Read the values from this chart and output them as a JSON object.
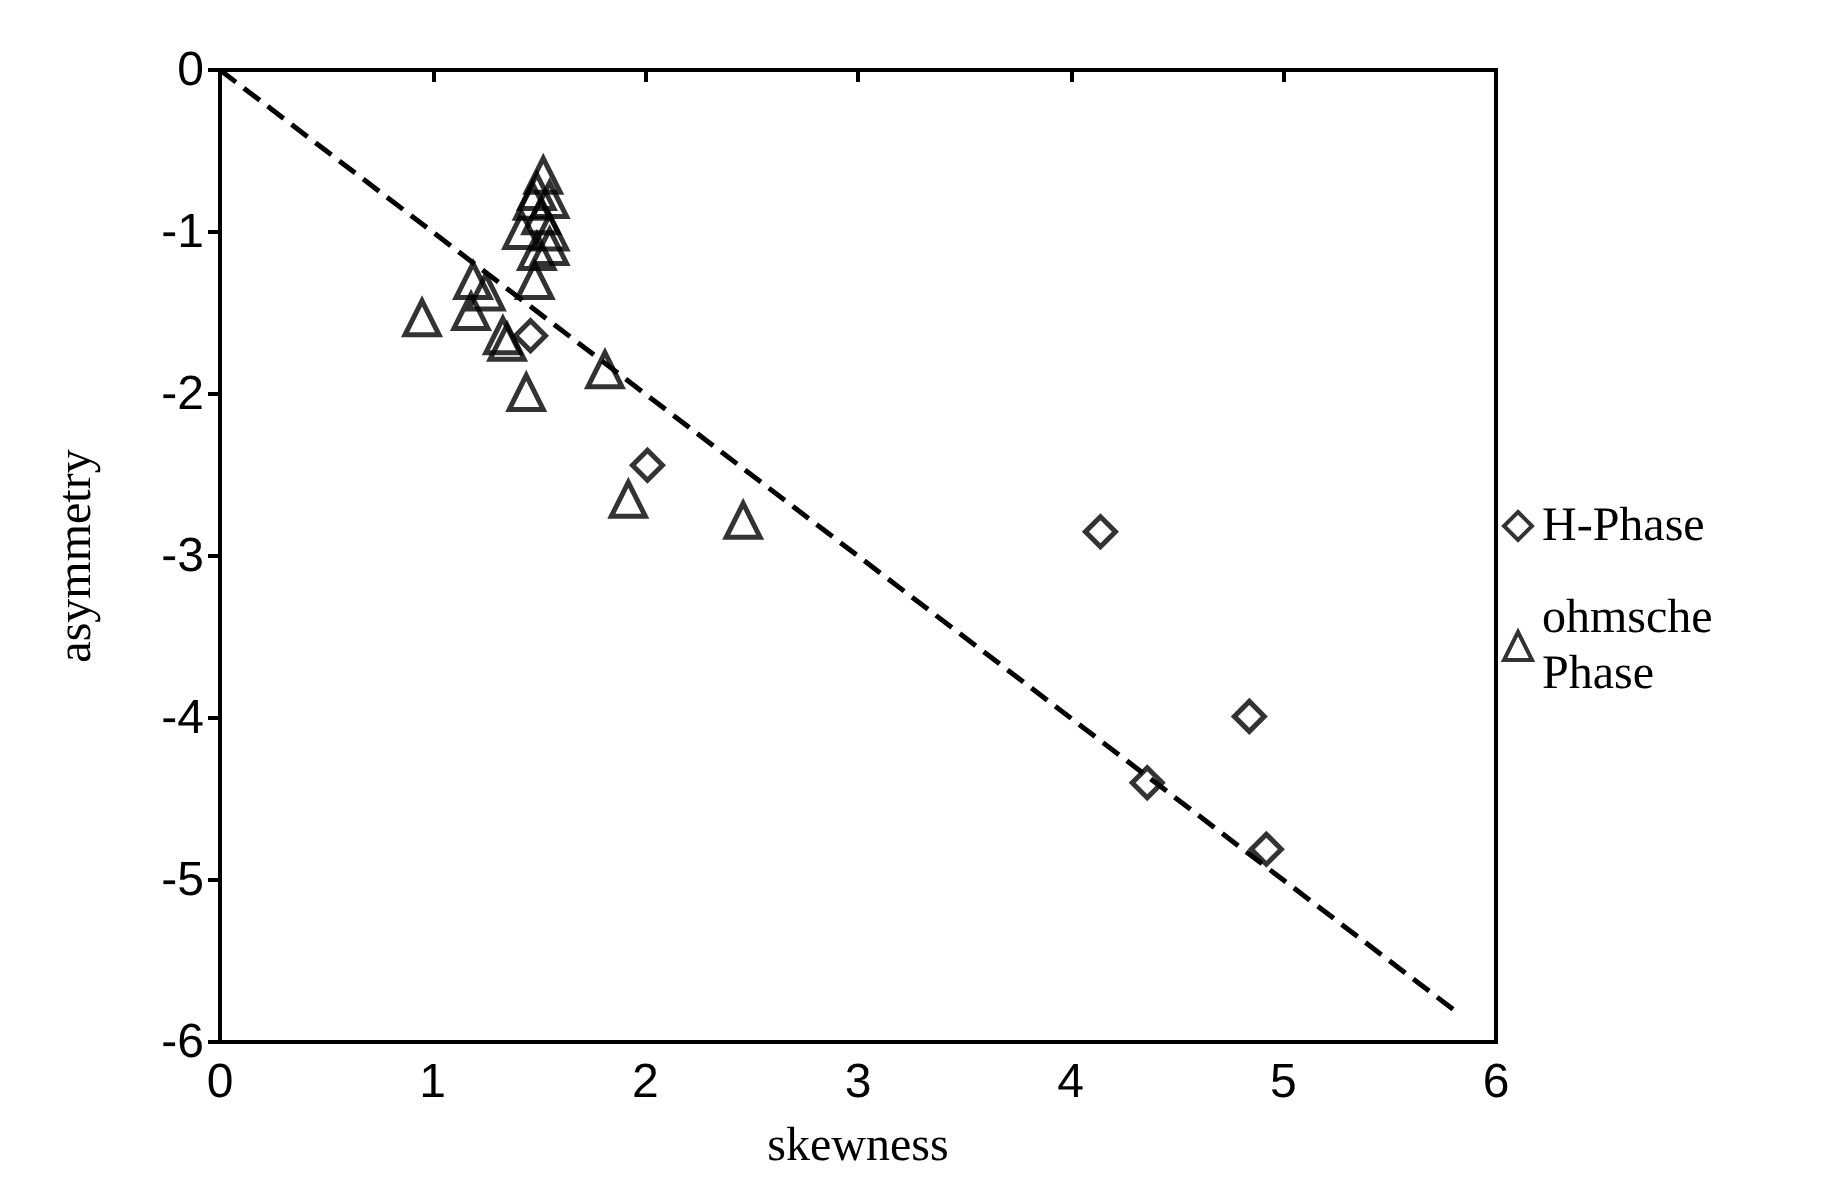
{
  "chart_data": {
    "type": "scatter",
    "xlabel": "skewness",
    "ylabel": "asymmetry",
    "xlim": [
      0,
      6
    ],
    "ylim": [
      -6,
      0
    ],
    "xticks": [
      0,
      1,
      2,
      3,
      4,
      5,
      6
    ],
    "yticks": [
      -6,
      -5,
      -4,
      -3,
      -2,
      -1,
      0
    ],
    "grid": false,
    "legend": "right",
    "series": [
      {
        "name": "H-Phase",
        "color": "#000000",
        "marker": "diamond",
        "x": [
          1.46,
          2.01,
          4.14,
          4.84,
          4.36,
          4.92
        ],
        "values": [
          -1.64,
          -2.44,
          -2.85,
          -3.99,
          -4.4,
          -4.81
        ]
      },
      {
        "name": "ohmsche Phase",
        "color": "#000000",
        "marker": "triangle",
        "x": [
          1.52,
          1.49,
          1.55,
          1.47,
          1.42,
          1.55,
          1.51,
          1.55,
          1.49,
          1.48,
          1.19,
          1.25,
          1.18,
          0.95,
          1.33,
          1.35,
          1.44,
          1.81,
          1.92,
          2.46
        ],
        "values": [
          -0.65,
          -0.75,
          -0.8,
          -0.81,
          -0.99,
          -1.0,
          -0.9,
          -1.09,
          -1.12,
          -1.3,
          -1.3,
          -1.37,
          -1.49,
          -1.53,
          -1.64,
          -1.68,
          -1.99,
          -1.85,
          -2.65,
          -2.78
        ]
      },
      {
        "type": "line",
        "color": "#000000",
        "line_style": "dashed",
        "marker": "none",
        "x": [
          0,
          5.8
        ],
        "values": [
          0,
          -5.8
        ]
      }
    ]
  }
}
